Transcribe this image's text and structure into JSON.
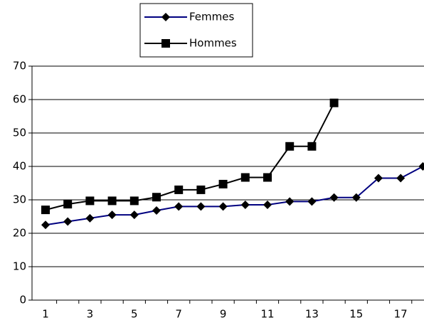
{
  "chart_data": {
    "type": "line",
    "categories": [
      "1",
      null,
      "3",
      null,
      "5",
      null,
      "7",
      null,
      "9",
      null,
      "11",
      null,
      "13",
      null,
      "15",
      null,
      "17",
      null
    ],
    "series": [
      {
        "name": "Femmes",
        "color": "#000080",
        "marker": "diamond",
        "values": [
          22.5,
          23.5,
          24.5,
          25.5,
          25.5,
          26.8,
          28,
          28,
          28,
          28.5,
          28.5,
          29.5,
          29.5,
          30.7,
          30.7,
          36.5,
          36.5,
          40
        ]
      },
      {
        "name": "Hommes",
        "color": "#000000",
        "marker": "square",
        "values": [
          27,
          28.7,
          29.7,
          29.7,
          29.7,
          30.8,
          33,
          33,
          34.7,
          36.7,
          36.7,
          46,
          46,
          59,
          null,
          null,
          null,
          null
        ]
      }
    ],
    "ylim": [
      0,
      70
    ],
    "yticks": [
      0,
      10,
      20,
      30,
      40,
      50,
      60,
      70
    ],
    "grid": true
  }
}
